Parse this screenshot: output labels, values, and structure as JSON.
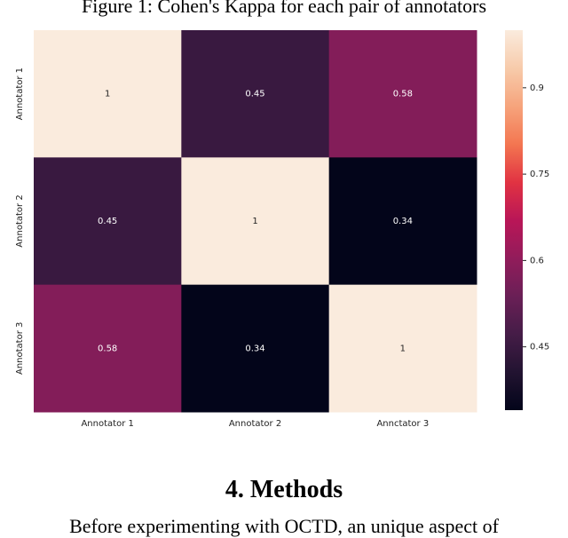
{
  "chart_data": {
    "type": "heatmap",
    "title": "Figure 1: Cohen's Kappa for each pair of annotators",
    "x_categories": [
      "Annotator 1",
      "Annotator 2",
      "Annctator 3"
    ],
    "y_categories": [
      "Annotator 1",
      "Annotator 2",
      "Annotator 3"
    ],
    "values": [
      [
        1,
        0.45,
        0.58
      ],
      [
        0.45,
        1,
        0.34
      ],
      [
        0.58,
        0.34,
        1
      ]
    ],
    "colormap": "rocket",
    "clim": [
      0.34,
      1
    ],
    "cticks": [
      0.45,
      0.6,
      0.75,
      0.9
    ]
  },
  "section": {
    "heading": "4.  Methods",
    "text": "Before experimenting with OCTD, an unique aspect of"
  }
}
